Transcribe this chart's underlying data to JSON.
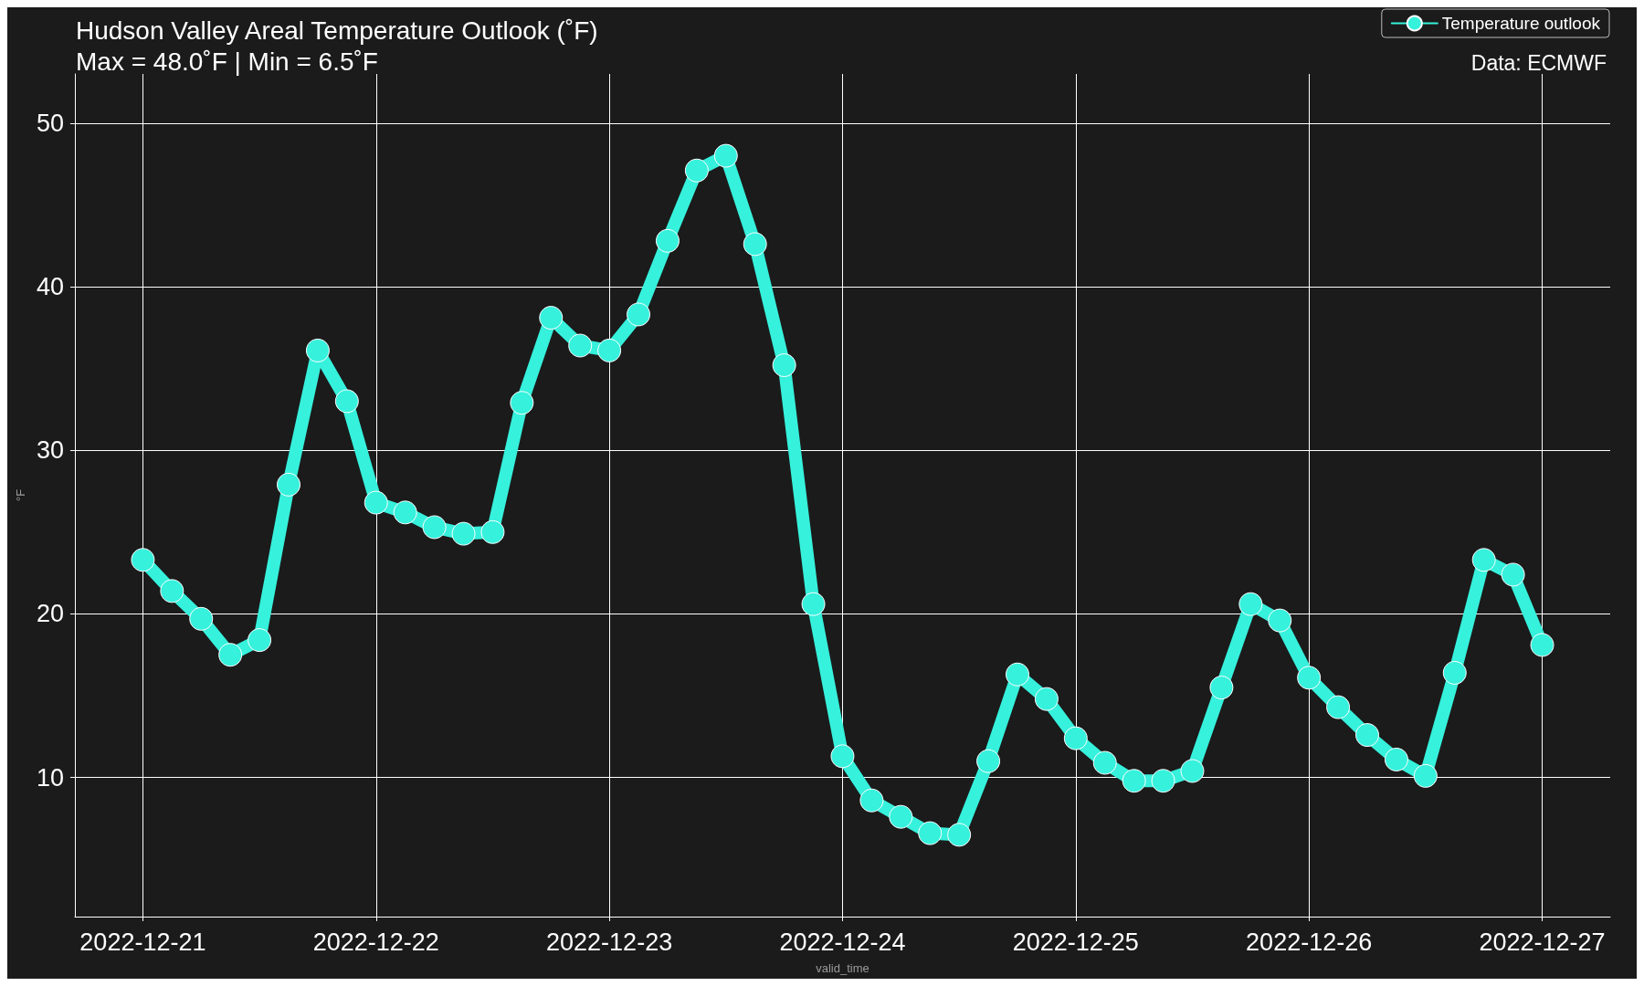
{
  "chart_data": {
    "type": "line",
    "title": "Hudson Valley Areal Temperature Outlook (˚F)",
    "subtitle": "Max = 48.0˚F | Min = 6.5˚F",
    "xlabel": "valid_time",
    "ylabel": "°F",
    "annotations": [
      "Data: ECMWF"
    ],
    "x": [
      "2022-12-21T00:00",
      "2022-12-21T03:00",
      "2022-12-21T06:00",
      "2022-12-21T09:00",
      "2022-12-21T12:00",
      "2022-12-21T15:00",
      "2022-12-21T18:00",
      "2022-12-21T21:00",
      "2022-12-22T00:00",
      "2022-12-22T03:00",
      "2022-12-22T06:00",
      "2022-12-22T09:00",
      "2022-12-22T12:00",
      "2022-12-22T15:00",
      "2022-12-22T18:00",
      "2022-12-22T21:00",
      "2022-12-23T00:00",
      "2022-12-23T03:00",
      "2022-12-23T06:00",
      "2022-12-23T09:00",
      "2022-12-23T12:00",
      "2022-12-23T15:00",
      "2022-12-23T18:00",
      "2022-12-23T21:00",
      "2022-12-24T00:00",
      "2022-12-24T03:00",
      "2022-12-24T06:00",
      "2022-12-24T09:00",
      "2022-12-24T12:00",
      "2022-12-24T15:00",
      "2022-12-24T18:00",
      "2022-12-24T21:00",
      "2022-12-25T00:00",
      "2022-12-25T03:00",
      "2022-12-25T06:00",
      "2022-12-25T09:00",
      "2022-12-25T12:00",
      "2022-12-25T15:00",
      "2022-12-25T18:00",
      "2022-12-25T21:00",
      "2022-12-26T00:00",
      "2022-12-26T03:00",
      "2022-12-26T06:00",
      "2022-12-26T09:00",
      "2022-12-26T12:00",
      "2022-12-26T15:00",
      "2022-12-26T18:00",
      "2022-12-26T21:00",
      "2022-12-27T00:00"
    ],
    "series": [
      {
        "name": "Temperature outlook",
        "color": "#36f1dc",
        "values": [
          23.3,
          21.4,
          19.7,
          17.5,
          18.4,
          27.9,
          36.1,
          33.0,
          26.8,
          26.2,
          25.3,
          24.9,
          25.0,
          32.9,
          38.1,
          36.4,
          36.1,
          38.3,
          42.8,
          47.1,
          48.0,
          42.6,
          35.2,
          20.6,
          11.3,
          8.6,
          7.6,
          6.6,
          6.5,
          11.0,
          16.3,
          14.8,
          12.4,
          10.9,
          9.8,
          9.8,
          10.4,
          15.5,
          20.6,
          19.6,
          16.1,
          14.3,
          12.6,
          11.1,
          10.1,
          16.4,
          23.3,
          22.4,
          18.1
        ]
      }
    ],
    "xlim": [
      "2022-12-20T17:00",
      "2022-12-27T07:00"
    ],
    "xticks": [
      "2022-12-21",
      "2022-12-22",
      "2022-12-23",
      "2022-12-24",
      "2022-12-25",
      "2022-12-26",
      "2022-12-27"
    ],
    "ylim": [
      1.5,
      53
    ],
    "yticks": [
      10,
      20,
      30,
      40,
      50
    ],
    "grid": true,
    "legend": "top right",
    "marker": "circle",
    "line_style": "solid"
  }
}
